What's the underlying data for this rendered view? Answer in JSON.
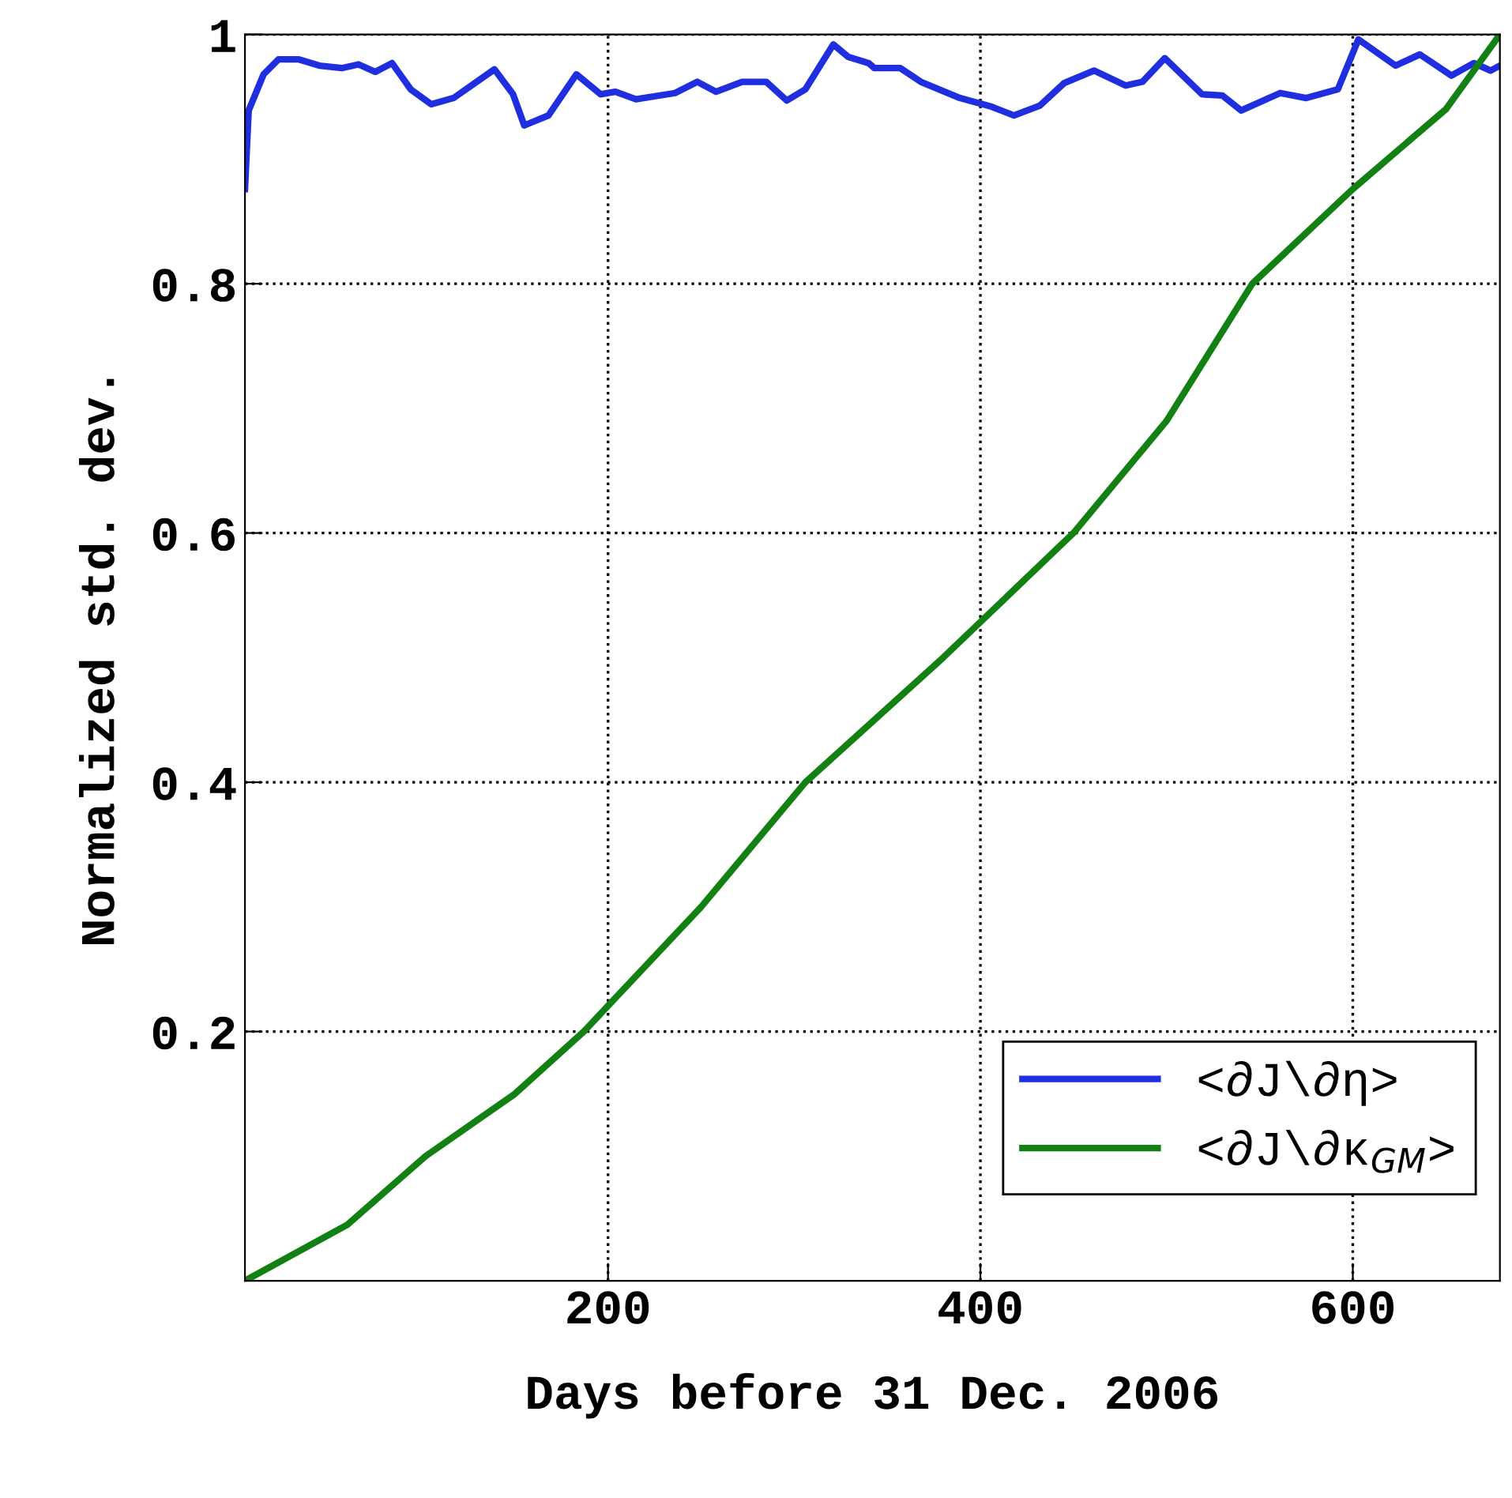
{
  "chart_data": {
    "type": "line",
    "xlabel": "Days before 31 Dec. 2006",
    "ylabel": "Normalized std. dev.",
    "xlim": [
      5,
      679
    ],
    "ylim": [
      0,
      1
    ],
    "xticks": [
      200,
      400,
      600
    ],
    "yticks": [
      0.2,
      0.4,
      0.6,
      0.8,
      1
    ],
    "grid": true,
    "legend": "bottom right",
    "line_style": "solid",
    "marker": "none",
    "series": [
      {
        "name": "<∂J\\∂η>",
        "color": "#1f2fe0",
        "x": [
          5,
          7,
          15,
          23,
          34,
          45,
          57,
          66,
          75,
          84,
          94,
          105,
          117,
          139,
          149,
          155,
          168,
          183,
          196,
          204,
          215,
          236,
          248,
          258,
          272,
          285,
          296,
          306,
          321,
          329,
          340,
          343,
          357,
          368,
          389,
          406,
          418,
          432,
          445,
          461,
          478,
          487,
          499,
          519,
          530,
          540,
          561,
          575,
          592,
          603,
          623,
          636,
          653,
          665,
          674,
          679
        ],
        "values": [
          0.876,
          0.939,
          0.968,
          0.98,
          0.98,
          0.975,
          0.973,
          0.976,
          0.97,
          0.977,
          0.956,
          0.944,
          0.949,
          0.972,
          0.952,
          0.927,
          0.935,
          0.968,
          0.952,
          0.954,
          0.948,
          0.953,
          0.962,
          0.954,
          0.962,
          0.962,
          0.947,
          0.956,
          0.992,
          0.982,
          0.977,
          0.973,
          0.973,
          0.962,
          0.949,
          0.942,
          0.935,
          0.943,
          0.961,
          0.971,
          0.959,
          0.962,
          0.981,
          0.952,
          0.951,
          0.939,
          0.953,
          0.949,
          0.956,
          0.996,
          0.975,
          0.984,
          0.967,
          0.977,
          0.971,
          0.975
        ]
      },
      {
        "name": "<∂J\\∂κ$_{GM}$>",
        "color": "#128012",
        "x": [
          5,
          60,
          102,
          150,
          187,
          250,
          306,
          380,
          450,
          500,
          546,
          600,
          650,
          679
        ],
        "values": [
          0,
          0.045,
          0.1,
          0.15,
          0.2,
          0.3,
          0.4,
          0.5,
          0.6,
          0.69,
          0.8,
          0.876,
          0.94,
          1
        ]
      }
    ]
  }
}
